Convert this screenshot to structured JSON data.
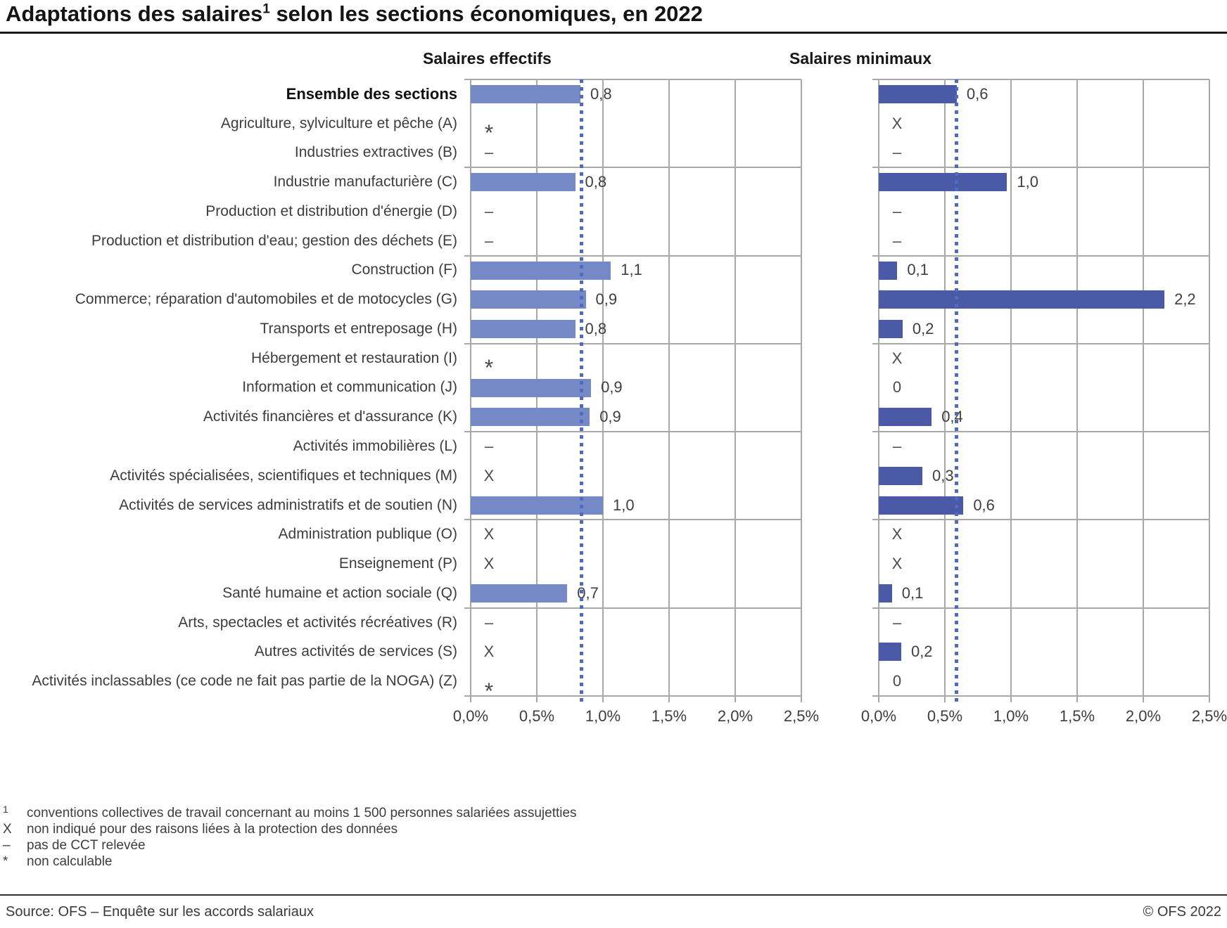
{
  "title": {
    "prefix": "Adaptations des salaires",
    "footnote_marker": "1",
    "suffix": " selon les sections économiques, en 2022"
  },
  "columns": {
    "left": "Salaires effectifs",
    "right": "Salaires minimaux"
  },
  "chart_data": {
    "type": "bar",
    "orientation": "horizontal",
    "unit": "%",
    "xlim": [
      0,
      2.5
    ],
    "x_tick_labels": [
      "0,0%",
      "0,5%",
      "1,0%",
      "1,5%",
      "2,0%",
      "2,5%"
    ],
    "grid": true,
    "group_separators_after_rows": [
      3,
      6,
      9,
      12,
      15,
      18
    ],
    "categories": [
      "Ensemble des sections",
      "Agriculture, sylviculture et pêche (A)",
      "Industries extractives (B)",
      "Industrie manufacturière (C)",
      "Production et distribution d'énergie (D)",
      "Production et distribution d'eau; gestion des déchets (E)",
      "Construction (F)",
      "Commerce; réparation d'automobiles et de motocycles (G)",
      "Transports et entreposage (H)",
      "Hébergement et restauration (I)",
      "Information et communication (J)",
      "Activités financières et d'assurance (K)",
      "Activités immobilières (L)",
      "Activités spécialisées, scientifiques et techniques (M)",
      "Activités de services administratifs et de soutien (N)",
      "Administration publique (O)",
      "Enseignement (P)",
      "Santé humaine et action sociale (Q)",
      "Arts, spectacles et activités récréatives (R)",
      "Autres activités de services (S)",
      "Activités inclassables (ce code ne fait pas partie de la NOGA) (Z)"
    ],
    "series": [
      {
        "name": "Salaires effectifs",
        "values": [
          0.8,
          null,
          null,
          0.8,
          null,
          null,
          1.1,
          0.9,
          0.8,
          null,
          0.9,
          0.9,
          null,
          null,
          1.0,
          null,
          null,
          0.7,
          null,
          null,
          null
        ],
        "labels": [
          "0,8",
          "*",
          "–",
          "0,8",
          "–",
          "–",
          "1,1",
          "0,9",
          "0,8",
          "*",
          "0,9",
          "0,9",
          "–",
          "X",
          "1,0",
          "X",
          "X",
          "0,7",
          "–",
          "X",
          "*"
        ]
      },
      {
        "name": "Salaires minimaux",
        "values": [
          0.6,
          null,
          null,
          1.0,
          null,
          null,
          0.1,
          2.2,
          0.2,
          null,
          0,
          0.4,
          null,
          0.3,
          0.6,
          null,
          null,
          0.1,
          null,
          0.2,
          0
        ],
        "labels": [
          "0,6",
          "X",
          "–",
          "1,0",
          "–",
          "–",
          "0,1",
          "2,2",
          "0,2",
          "X",
          "0",
          "0,4",
          "–",
          "0,3",
          "0,6",
          "X",
          "X",
          "0,1",
          "–",
          "0,2",
          "0"
        ]
      }
    ],
    "reference_lines": [
      {
        "series": "Salaires effectifs",
        "value": 0.84,
        "represents": "Ensemble des sections"
      },
      {
        "series": "Salaires minimaux",
        "value": 0.59,
        "represents": "Ensemble des sections"
      }
    ]
  },
  "rows": [
    {
      "label": "Ensemble des sections",
      "bold": true,
      "eff": {
        "bar": 0.83,
        "text": "0,8"
      },
      "min": {
        "bar": 0.59,
        "text": "0,6"
      }
    },
    {
      "label": "Agriculture, sylviculture et pêche (A)",
      "eff": {
        "bar": null,
        "text": "*"
      },
      "min": {
        "bar": null,
        "text": "X"
      }
    },
    {
      "label": "Industries extractives (B)",
      "eff": {
        "bar": null,
        "text": "–"
      },
      "min": {
        "bar": null,
        "text": "–"
      }
    },
    {
      "label": "Industrie manufacturière (C)",
      "eff": {
        "bar": 0.79,
        "text": "0,8"
      },
      "min": {
        "bar": 0.97,
        "text": "1,0"
      }
    },
    {
      "label": "Production et distribution d'énergie (D)",
      "eff": {
        "bar": null,
        "text": "–"
      },
      "min": {
        "bar": null,
        "text": "–"
      }
    },
    {
      "label": "Production et distribution d'eau; gestion des déchets (E)",
      "eff": {
        "bar": null,
        "text": "–"
      },
      "min": {
        "bar": null,
        "text": "–"
      }
    },
    {
      "label": "Construction (F)",
      "eff": {
        "bar": 1.06,
        "text": "1,1"
      },
      "min": {
        "bar": 0.14,
        "text": "0,1"
      }
    },
    {
      "label": "Commerce; réparation d'automobiles et de motocycles (G)",
      "eff": {
        "bar": 0.87,
        "text": "0,9"
      },
      "min": {
        "bar": 2.16,
        "text": "2,2"
      }
    },
    {
      "label": "Transports et entreposage (H)",
      "eff": {
        "bar": 0.79,
        "text": "0,8"
      },
      "min": {
        "bar": 0.18,
        "text": "0,2"
      }
    },
    {
      "label": "Hébergement et restauration (I)",
      "eff": {
        "bar": null,
        "text": "*"
      },
      "min": {
        "bar": null,
        "text": "X"
      }
    },
    {
      "label": "Information et communication (J)",
      "eff": {
        "bar": 0.91,
        "text": "0,9"
      },
      "min": {
        "bar": null,
        "text": "0"
      }
    },
    {
      "label": "Activités financières et d'assurance (K)",
      "eff": {
        "bar": 0.9,
        "text": "0,9"
      },
      "min": {
        "bar": 0.4,
        "text": "0,4"
      }
    },
    {
      "label": "Activités immobilières (L)",
      "eff": {
        "bar": null,
        "text": "–"
      },
      "min": {
        "bar": null,
        "text": "–"
      }
    },
    {
      "label": "Activités spécialisées, scientifiques et techniques (M)",
      "eff": {
        "bar": null,
        "text": "X"
      },
      "min": {
        "bar": 0.33,
        "text": "0,3"
      }
    },
    {
      "label": "Activités de services administratifs et de soutien (N)",
      "eff": {
        "bar": 1.0,
        "text": "1,0"
      },
      "min": {
        "bar": 0.64,
        "text": "0,6"
      }
    },
    {
      "label": "Administration publique (O)",
      "eff": {
        "bar": null,
        "text": "X"
      },
      "min": {
        "bar": null,
        "text": "X"
      }
    },
    {
      "label": "Enseignement (P)",
      "eff": {
        "bar": null,
        "text": "X"
      },
      "min": {
        "bar": null,
        "text": "X"
      }
    },
    {
      "label": "Santé humaine et action sociale (Q)",
      "eff": {
        "bar": 0.73,
        "text": "0,7"
      },
      "min": {
        "bar": 0.1,
        "text": "0,1"
      }
    },
    {
      "label": "Arts, spectacles et activités récréatives (R)",
      "eff": {
        "bar": null,
        "text": "–"
      },
      "min": {
        "bar": null,
        "text": "–"
      }
    },
    {
      "label": "Autres activités de services (S)",
      "eff": {
        "bar": null,
        "text": "X"
      },
      "min": {
        "bar": 0.17,
        "text": "0,2"
      }
    },
    {
      "label": "Activités inclassables (ce code ne fait pas partie de la NOGA) (Z)",
      "eff": {
        "bar": null,
        "text": "*"
      },
      "min": {
        "bar": null,
        "text": "0"
      }
    }
  ],
  "footnotes": [
    {
      "marker": "1",
      "sup": true,
      "text": "conventions collectives de travail concernant au moins 1 500 personnes salariées assujetties"
    },
    {
      "marker": "X",
      "sup": false,
      "text": "non indiqué pour des raisons liées à la protection des données"
    },
    {
      "marker": "–",
      "sup": false,
      "text": "pas de CCT relevée"
    },
    {
      "marker": "*",
      "sup": false,
      "text": "non calculable"
    }
  ],
  "footer": {
    "source": "Source: OFS – Enquête sur les accords salariaux",
    "copyright": "© OFS 2022"
  },
  "colors": {
    "bar_effectifs": "#7589c6",
    "bar_minimaux": "#4a5aa6",
    "reference_line": "#5169c1",
    "gridline": "#a8a8a8",
    "title_rule": "#1a1a1a",
    "text": "#3d3d3d"
  }
}
